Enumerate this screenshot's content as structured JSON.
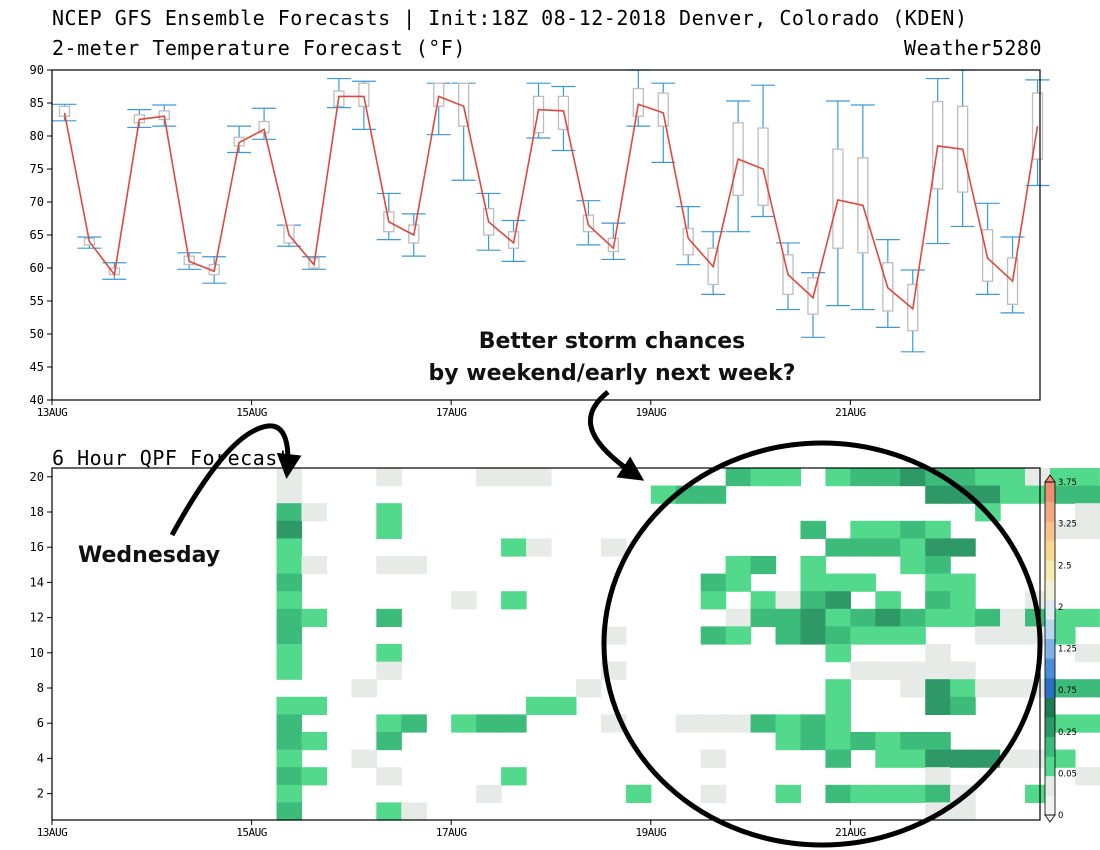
{
  "header": {
    "title_line1": "NCEP GFS Ensemble Forecasts | Init:18Z 08-12-2018 Denver, Colorado (KDEN)",
    "title_line2": "2-meter Temperature Forecast (°F)",
    "brand": "Weather5280"
  },
  "chart_data": [
    {
      "type": "boxplot",
      "title": "2-meter Temperature Forecast (°F)",
      "ylim": [
        40,
        90
      ],
      "yticks": [
        40,
        45,
        50,
        55,
        60,
        65,
        70,
        75,
        80,
        85,
        90
      ],
      "xlim": [
        13.0,
        22.9
      ],
      "x_ticks": [
        {
          "x": 13,
          "label": "13AUG"
        },
        {
          "x": 15,
          "label": "15AUG"
        },
        {
          "x": 17,
          "label": "17AUG"
        },
        {
          "x": 19,
          "label": "19AUG"
        },
        {
          "x": 21,
          "label": "21AUG"
        }
      ],
      "step_hours": 6,
      "x_start": 13.0,
      "series": [
        {
          "name": "",
          "mean": [
            83.5,
            64,
            59,
            82.5,
            83,
            61,
            59.5,
            79,
            81,
            65,
            60.5,
            86,
            86,
            67,
            65,
            86,
            84.5,
            67,
            63.8,
            84,
            83.8,
            66.5,
            63,
            84.8,
            83.5,
            64.5,
            60.2,
            76.5,
            75,
            59,
            55.5,
            70.3,
            69.5,
            57,
            53.8,
            78.5,
            78,
            61.5,
            58,
            81.5
          ],
          "box_low": [
            83,
            63.5,
            59,
            82,
            82.5,
            60.5,
            59,
            78.5,
            80.5,
            63.8,
            60,
            84.5,
            84.5,
            65.5,
            63.8,
            84.5,
            81.5,
            65,
            63,
            80.5,
            81,
            65.5,
            62.5,
            83,
            81.5,
            62,
            57.5,
            71,
            69.5,
            56,
            53,
            63,
            62.3,
            53.5,
            50.5,
            72,
            71.5,
            58,
            54.5,
            76.5
          ],
          "box_high": [
            84.5,
            64.5,
            60,
            83.2,
            83.8,
            61.8,
            60.5,
            79.8,
            82.2,
            66.5,
            61.5,
            86.8,
            88,
            68.5,
            66.5,
            88,
            88,
            69,
            65.5,
            86,
            86,
            68,
            64.5,
            87.2,
            86.5,
            66,
            63,
            82,
            81.2,
            62,
            58.5,
            78,
            76.7,
            60.8,
            57.5,
            85.2,
            84.5,
            65.8,
            61.5,
            86.5
          ],
          "whisker_low": [
            82.3,
            63,
            58.3,
            81.3,
            81.5,
            59.8,
            57.7,
            77.5,
            79.5,
            63.3,
            59.8,
            84.3,
            81,
            64.3,
            61.8,
            80.2,
            73.3,
            62.7,
            61,
            79.7,
            77.8,
            63.5,
            61.3,
            81.5,
            76,
            60.5,
            56,
            65.5,
            67.8,
            53.7,
            49.5,
            54.3,
            53.7,
            51,
            47.3,
            63.7,
            66.3,
            56,
            53.2,
            72.5
          ],
          "whisker_high": [
            84.8,
            64.7,
            60.8,
            84,
            84.7,
            62.3,
            61.7,
            81.5,
            84.2,
            66.5,
            61.7,
            88.7,
            88.3,
            71.3,
            68.2,
            88,
            88,
            71.3,
            67.2,
            88,
            87.5,
            70.2,
            66.8,
            90,
            88,
            69.3,
            65.5,
            85.3,
            87.7,
            63.8,
            59.3,
            85.3,
            84.7,
            64.3,
            59.7,
            88.7,
            90,
            69.8,
            64.7,
            88.5
          ]
        }
      ]
    },
    {
      "type": "heatmap",
      "title": "6 Hour QPF Forecast",
      "y_members": [
        1,
        20
      ],
      "yticks": [
        2,
        4,
        6,
        8,
        10,
        12,
        14,
        16,
        18,
        20
      ],
      "x_ticks": [
        {
          "x": 13,
          "label": "13AUG"
        },
        {
          "x": 15,
          "label": "15AUG"
        },
        {
          "x": 17,
          "label": "17AUG"
        },
        {
          "x": 19,
          "label": "19AUG"
        },
        {
          "x": 21,
          "label": "21AUG"
        }
      ],
      "colorbar": {
        "ticks": [
          "0",
          "0.05",
          "0.25",
          "0.75",
          "1.25",
          "2",
          "2.5",
          "3.25",
          "3.75"
        ],
        "bins": [
          {
            "color": "#f2f2f2"
          },
          {
            "color": "#e6ebe8"
          },
          {
            "color": "#52d98c"
          },
          {
            "color": "#3dbb7a"
          },
          {
            "color": "#2e9966"
          },
          {
            "color": "#1e7a52"
          },
          {
            "color": "#2a6fc4"
          },
          {
            "color": "#4a8ed8"
          },
          {
            "color": "#7fb2e6"
          },
          {
            "color": "#b7d6f0"
          },
          {
            "color": "#e0ecf4"
          },
          {
            "color": "#f2f2d6"
          },
          {
            "color": "#f5eab0"
          },
          {
            "color": "#f8d890"
          },
          {
            "color": "#f6c38a"
          },
          {
            "color": "#f3a884"
          },
          {
            "color": "#ee8e72"
          }
        ]
      },
      "cells": [
        [
          9,
          20,
          1
        ],
        [
          9,
          19,
          1
        ],
        [
          9,
          18,
          3
        ],
        [
          9,
          17,
          4
        ],
        [
          9,
          16,
          2
        ],
        [
          9,
          15,
          2
        ],
        [
          9,
          14,
          3
        ],
        [
          9,
          13,
          2
        ],
        [
          9,
          12,
          3
        ],
        [
          9,
          11,
          3
        ],
        [
          9,
          10,
          2
        ],
        [
          9,
          9,
          2
        ],
        [
          9,
          7,
          2
        ],
        [
          9,
          6,
          3
        ],
        [
          9,
          5,
          3
        ],
        [
          9,
          4,
          2
        ],
        [
          9,
          3,
          3
        ],
        [
          9,
          2,
          2
        ],
        [
          9,
          1,
          3
        ],
        [
          10,
          7,
          2
        ],
        [
          10,
          5,
          2
        ],
        [
          10,
          3,
          2
        ],
        [
          10,
          18,
          1
        ],
        [
          10,
          15,
          1
        ],
        [
          10,
          12,
          2
        ],
        [
          12,
          8,
          1
        ],
        [
          12,
          4,
          1
        ],
        [
          13,
          20,
          1
        ],
        [
          13,
          18,
          2
        ],
        [
          13,
          17,
          2
        ],
        [
          13,
          15,
          1
        ],
        [
          13,
          12,
          3
        ],
        [
          13,
          10,
          2
        ],
        [
          13,
          9,
          1
        ],
        [
          13,
          6,
          2
        ],
        [
          13,
          5,
          3
        ],
        [
          13,
          3,
          1
        ],
        [
          13,
          1,
          2
        ],
        [
          14,
          15,
          1
        ],
        [
          14,
          6,
          3
        ],
        [
          14,
          1,
          1
        ],
        [
          16,
          6,
          2
        ],
        [
          16,
          13,
          1
        ],
        [
          17,
          20,
          1
        ],
        [
          17,
          6,
          3
        ],
        [
          17,
          2,
          1
        ],
        [
          18,
          20,
          1
        ],
        [
          18,
          16,
          2
        ],
        [
          18,
          13,
          2
        ],
        [
          18,
          6,
          3
        ],
        [
          18,
          3,
          2
        ],
        [
          19,
          20,
          1
        ],
        [
          19,
          7,
          2
        ],
        [
          19,
          16,
          1
        ],
        [
          20,
          7,
          2
        ],
        [
          21,
          8,
          1
        ],
        [
          22,
          16,
          1
        ],
        [
          22,
          11,
          1
        ],
        [
          22,
          9,
          1
        ],
        [
          22,
          6,
          1
        ],
        [
          23,
          2,
          2
        ],
        [
          24,
          19,
          2
        ],
        [
          25,
          19,
          3
        ],
        [
          25,
          6,
          1
        ],
        [
          26,
          19,
          3
        ],
        [
          26,
          14,
          3
        ],
        [
          26,
          13,
          2
        ],
        [
          26,
          11,
          3
        ],
        [
          26,
          6,
          1
        ],
        [
          26,
          4,
          1
        ],
        [
          26,
          2,
          1
        ],
        [
          27,
          20,
          3
        ],
        [
          27,
          15,
          2
        ],
        [
          27,
          14,
          2
        ],
        [
          27,
          12,
          1
        ],
        [
          27,
          11,
          2
        ],
        [
          27,
          6,
          1
        ],
        [
          28,
          20,
          2
        ],
        [
          28,
          15,
          3
        ],
        [
          28,
          13,
          2
        ],
        [
          28,
          12,
          3
        ],
        [
          28,
          6,
          3
        ],
        [
          29,
          20,
          2
        ],
        [
          29,
          13,
          1
        ],
        [
          29,
          12,
          3
        ],
        [
          29,
          11,
          3
        ],
        [
          29,
          6,
          2
        ],
        [
          29,
          5,
          2
        ],
        [
          29,
          2,
          2
        ],
        [
          30,
          17,
          3
        ],
        [
          30,
          15,
          2
        ],
        [
          30,
          14,
          2
        ],
        [
          30,
          13,
          3
        ],
        [
          30,
          12,
          4
        ],
        [
          30,
          11,
          4
        ],
        [
          30,
          6,
          3
        ],
        [
          30,
          5,
          3
        ],
        [
          31,
          20,
          2
        ],
        [
          31,
          16,
          3
        ],
        [
          31,
          14,
          2
        ],
        [
          31,
          13,
          4
        ],
        [
          31,
          12,
          2
        ],
        [
          31,
          11,
          3
        ],
        [
          31,
          10,
          2
        ],
        [
          31,
          8,
          2
        ],
        [
          31,
          7,
          2
        ],
        [
          31,
          6,
          2
        ],
        [
          31,
          5,
          2
        ],
        [
          31,
          4,
          3
        ],
        [
          31,
          2,
          3
        ],
        [
          32,
          20,
          3
        ],
        [
          32,
          17,
          2
        ],
        [
          32,
          16,
          3
        ],
        [
          32,
          14,
          2
        ],
        [
          32,
          12,
          3
        ],
        [
          32,
          11,
          2
        ],
        [
          32,
          9,
          1
        ],
        [
          32,
          5,
          3
        ],
        [
          32,
          2,
          2
        ],
        [
          33,
          20,
          3
        ],
        [
          33,
          17,
          2
        ],
        [
          33,
          16,
          3
        ],
        [
          33,
          13,
          2
        ],
        [
          33,
          12,
          4
        ],
        [
          33,
          11,
          2
        ],
        [
          33,
          9,
          1
        ],
        [
          33,
          5,
          2
        ],
        [
          33,
          4,
          2
        ],
        [
          33,
          2,
          2
        ],
        [
          34,
          20,
          4
        ],
        [
          34,
          17,
          3
        ],
        [
          34,
          16,
          2
        ],
        [
          34,
          15,
          2
        ],
        [
          34,
          12,
          3
        ],
        [
          34,
          11,
          2
        ],
        [
          34,
          9,
          1
        ],
        [
          34,
          8,
          1
        ],
        [
          34,
          5,
          3
        ],
        [
          34,
          4,
          2
        ],
        [
          34,
          2,
          2
        ],
        [
          35,
          20,
          3
        ],
        [
          35,
          19,
          4
        ],
        [
          35,
          17,
          2
        ],
        [
          35,
          16,
          4
        ],
        [
          35,
          15,
          3
        ],
        [
          35,
          14,
          2
        ],
        [
          35,
          13,
          3
        ],
        [
          35,
          12,
          2
        ],
        [
          35,
          10,
          1
        ],
        [
          35,
          9,
          1
        ],
        [
          35,
          8,
          4
        ],
        [
          35,
          7,
          4
        ],
        [
          35,
          5,
          3
        ],
        [
          35,
          4,
          4
        ],
        [
          35,
          3,
          1
        ],
        [
          35,
          2,
          3
        ],
        [
          35,
          1,
          1
        ],
        [
          36,
          20,
          3
        ],
        [
          36,
          19,
          4
        ],
        [
          36,
          16,
          4
        ],
        [
          36,
          14,
          2
        ],
        [
          36,
          13,
          2
        ],
        [
          36,
          12,
          2
        ],
        [
          36,
          9,
          1
        ],
        [
          36,
          8,
          2
        ],
        [
          36,
          7,
          3
        ],
        [
          36,
          4,
          4
        ],
        [
          36,
          2,
          1
        ],
        [
          36,
          1,
          1
        ],
        [
          37,
          20,
          2
        ],
        [
          37,
          19,
          4
        ],
        [
          37,
          18,
          2
        ],
        [
          37,
          12,
          3
        ],
        [
          37,
          11,
          1
        ],
        [
          37,
          8,
          1
        ],
        [
          37,
          4,
          4
        ],
        [
          38,
          20,
          2
        ],
        [
          38,
          19,
          2
        ],
        [
          38,
          12,
          1
        ],
        [
          38,
          11,
          1
        ],
        [
          38,
          8,
          1
        ],
        [
          38,
          4,
          1
        ],
        [
          39,
          20,
          1
        ],
        [
          39,
          19,
          2
        ],
        [
          39,
          13,
          1
        ],
        [
          39,
          12,
          3
        ],
        [
          39,
          11,
          1
        ],
        [
          39,
          8,
          1
        ],
        [
          39,
          4,
          1
        ],
        [
          39,
          2,
          2
        ],
        [
          40,
          20,
          2
        ],
        [
          40,
          19,
          3
        ],
        [
          40,
          17,
          1
        ],
        [
          40,
          12,
          2
        ],
        [
          40,
          11,
          2
        ],
        [
          40,
          8,
          3
        ],
        [
          40,
          6,
          2
        ],
        [
          40,
          4,
          2
        ],
        [
          41,
          20,
          2
        ],
        [
          41,
          19,
          3
        ],
        [
          41,
          18,
          1
        ],
        [
          41,
          17,
          1
        ],
        [
          41,
          12,
          2
        ],
        [
          41,
          10,
          1
        ],
        [
          41,
          8,
          3
        ],
        [
          41,
          6,
          2
        ],
        [
          41,
          3,
          1
        ],
        [
          42,
          20,
          1
        ],
        [
          42,
          17,
          1
        ],
        [
          42,
          12,
          1
        ],
        [
          42,
          10,
          1
        ],
        [
          42,
          8,
          3
        ],
        [
          42,
          6,
          2
        ],
        [
          43,
          18,
          1
        ],
        [
          43,
          12,
          1
        ],
        [
          43,
          8,
          3
        ],
        [
          43,
          6,
          2
        ]
      ]
    }
  ],
  "annotations": {
    "storm_line1": "Better storm chances",
    "storm_line2": "by weekend/early next week?",
    "wednesday": "Wednesday",
    "qpf_title": "6 Hour QPF Forecast"
  }
}
